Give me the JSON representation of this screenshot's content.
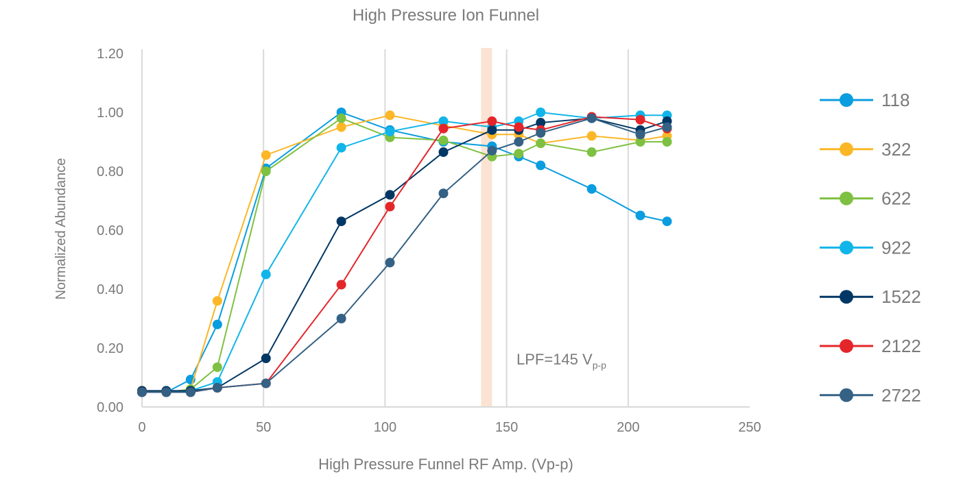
{
  "chart_data": {
    "type": "line",
    "title": "High Pressure Ion Funnel",
    "xlabel": "High Pressure Funnel RF Amp. (Vp-p)",
    "ylabel": "Normalized Abundance",
    "xlim": [
      0,
      250
    ],
    "ylim": [
      0,
      1.2
    ],
    "xticks": [
      "0",
      "50",
      "100",
      "150",
      "200",
      "250"
    ],
    "yticks": [
      "0.00",
      "0.20",
      "0.40",
      "0.60",
      "0.80",
      "1.00",
      "1.20"
    ],
    "grid": "vertical",
    "legend": "right",
    "x": [
      0,
      10,
      20,
      31,
      51,
      82,
      102,
      124,
      144,
      155,
      164,
      185,
      205,
      216
    ],
    "series": [
      {
        "name": "118",
        "color": "#0a9ddf",
        "values": [
          0.05,
          0.05,
          0.093,
          0.28,
          0.81,
          1.0,
          0.94,
          0.9,
          0.885,
          0.85,
          0.82,
          0.74,
          0.65,
          0.63
        ]
      },
      {
        "name": "322",
        "color": "#fbb726",
        "values": [
          0.055,
          0.05,
          0.06,
          0.36,
          0.855,
          0.95,
          0.99,
          0.955,
          0.925,
          0.925,
          0.895,
          0.92,
          0.905,
          0.92
        ]
      },
      {
        "name": "622",
        "color": "#7ec142",
        "values": [
          0.05,
          0.05,
          0.06,
          0.135,
          0.8,
          0.98,
          0.915,
          0.905,
          0.85,
          0.86,
          0.895,
          0.865,
          0.9,
          0.9
        ]
      },
      {
        "name": "922",
        "color": "#11b5e9",
        "values": [
          0.05,
          0.05,
          0.055,
          0.085,
          0.45,
          0.88,
          0.935,
          0.97,
          0.95,
          0.97,
          1.0,
          0.98,
          0.99,
          0.99
        ]
      },
      {
        "name": "1522",
        "color": "#003764",
        "values": [
          0.055,
          0.055,
          0.055,
          0.065,
          0.165,
          0.63,
          0.72,
          0.865,
          0.94,
          0.94,
          0.965,
          0.98,
          0.94,
          0.97
        ]
      },
      {
        "name": "2122",
        "color": "#e4262a",
        "values": [
          0.05,
          0.05,
          0.05,
          0.065,
          0.08,
          0.415,
          0.68,
          0.945,
          0.97,
          0.95,
          0.94,
          0.985,
          0.975,
          0.945
        ]
      },
      {
        "name": "2722",
        "color": "#346184",
        "values": [
          0.05,
          0.05,
          0.05,
          0.065,
          0.08,
          0.3,
          0.49,
          0.725,
          0.87,
          0.9,
          0.93,
          0.98,
          0.925,
          0.95
        ]
      }
    ],
    "annotation": {
      "band": [
        139.5,
        144
      ],
      "band_color": "#fbe3d3",
      "text": "LPF=145 V",
      "subscript": "p-p"
    }
  }
}
